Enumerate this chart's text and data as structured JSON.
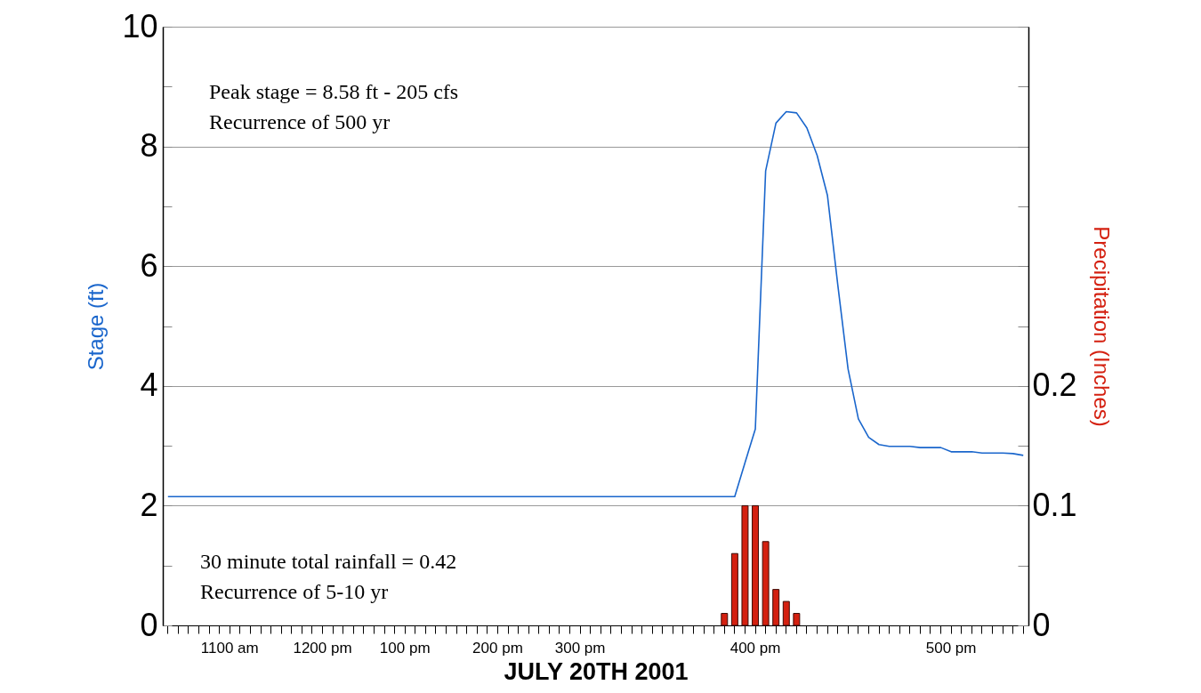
{
  "chart_data": {
    "type": "line",
    "xlabel": "JULY 20TH 2001",
    "ylabel": "Stage (ft)",
    "y2label": "Precipitation (Inches)",
    "categories": [
      null,
      null,
      null,
      null,
      null,
      null,
      "1100 am",
      null,
      null,
      null,
      null,
      null,
      null,
      null,
      null,
      "1200 pm",
      null,
      null,
      null,
      null,
      null,
      null,
      null,
      "100 pm",
      null,
      null,
      null,
      null,
      null,
      null,
      null,
      null,
      "200 pm",
      null,
      null,
      null,
      null,
      null,
      null,
      null,
      "300 pm",
      null,
      null,
      null,
      null,
      null,
      null,
      null,
      null,
      null,
      null,
      null,
      null,
      null,
      null,
      null,
      null,
      "400 pm",
      null,
      null,
      null,
      null,
      null,
      null,
      null,
      null,
      null,
      null,
      null,
      null,
      null,
      null,
      null,
      null,
      null,
      null,
      "500 pm",
      null,
      null,
      null,
      null,
      null,
      null,
      null
    ],
    "series": [
      {
        "color": "#1a66cc",
        "values": [
          2.15,
          2.15,
          2.15,
          2.15,
          2.15,
          2.15,
          2.15,
          2.15,
          2.15,
          2.15,
          2.15,
          2.15,
          2.15,
          2.15,
          2.15,
          2.15,
          2.15,
          2.15,
          2.15,
          2.15,
          2.15,
          2.15,
          2.15,
          2.15,
          2.15,
          2.15,
          2.15,
          2.15,
          2.15,
          2.15,
          2.15,
          2.15,
          2.15,
          2.15,
          2.15,
          2.15,
          2.15,
          2.15,
          2.15,
          2.15,
          2.15,
          2.15,
          2.15,
          2.15,
          2.15,
          2.15,
          2.15,
          2.15,
          2.15,
          2.15,
          2.15,
          2.15,
          2.15,
          2.15,
          2.15,
          2.15,
          2.72,
          3.28,
          7.59,
          8.39,
          8.58,
          8.56,
          8.31,
          7.85,
          7.18,
          5.69,
          4.28,
          3.45,
          3.14,
          3.02,
          2.99,
          2.99,
          2.99,
          2.97,
          2.97,
          2.97,
          2.9,
          2.9,
          2.9,
          2.88,
          2.88,
          2.88,
          2.87,
          2.84
        ]
      },
      {
        "type": "bar",
        "axis": "y2",
        "color": "#d42010",
        "values": [
          null,
          null,
          null,
          null,
          null,
          null,
          null,
          null,
          null,
          null,
          null,
          null,
          null,
          null,
          null,
          null,
          null,
          null,
          null,
          null,
          null,
          null,
          null,
          null,
          null,
          null,
          null,
          null,
          null,
          null,
          null,
          null,
          null,
          null,
          null,
          null,
          null,
          null,
          null,
          null,
          null,
          null,
          null,
          null,
          null,
          null,
          null,
          null,
          null,
          null,
          null,
          null,
          null,
          null,
          0.01,
          0.06,
          0.1,
          0.1,
          0.07,
          0.03,
          0.02,
          0.01,
          null,
          null,
          null,
          null,
          null,
          null,
          null,
          null,
          null,
          null,
          null,
          null,
          null,
          null,
          null,
          null,
          null,
          null,
          null,
          null,
          null,
          null
        ]
      }
    ],
    "ylim": [
      0,
      10
    ],
    "yticks": [
      0,
      {
        "value": 1,
        "label": null
      },
      2,
      {
        "value": 3,
        "label": null
      },
      4,
      {
        "value": 5,
        "label": null
      },
      6,
      {
        "value": 7,
        "label": null
      },
      8,
      {
        "value": 9,
        "label": null
      },
      10
    ],
    "y2lim": [
      0,
      0.5
    ],
    "y2ticks": [
      0,
      {
        "value": 0.05,
        "label": null
      },
      0.1,
      {
        "value": 0.15,
        "label": null
      },
      0.2,
      {
        "value": 0.25,
        "label": null
      },
      {
        "value": 0.3,
        "label": null
      },
      {
        "value": 0.35,
        "label": null
      },
      {
        "value": 0.4,
        "label": null
      },
      {
        "value": 0.45,
        "label": null
      },
      {
        "value": 0.5,
        "label": null
      }
    ],
    "grid": "y",
    "line_style": "solid",
    "annotations": [
      "Peak stage = 8.58 ft - 205 cfs\nRecurrence of 500 yr",
      "30 minute total rainfall = 0.42\nRecurrence of 5-10 yr"
    ]
  }
}
